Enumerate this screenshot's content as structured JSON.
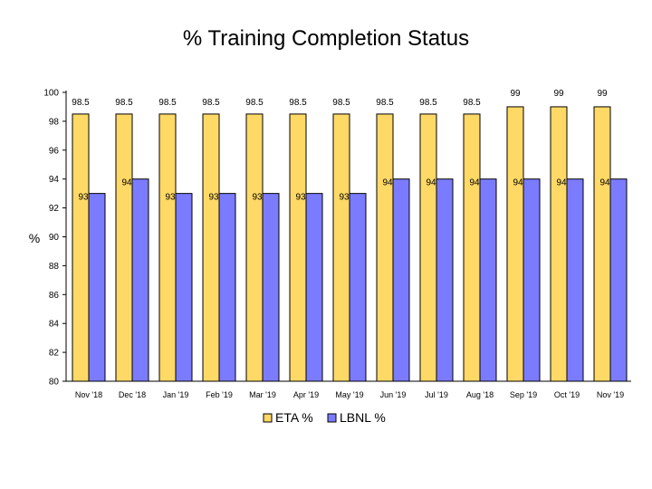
{
  "chart_data": {
    "type": "bar",
    "title": "% Training Completion Status",
    "ylabel": "%",
    "xlabel": "",
    "ylim": [
      80,
      100
    ],
    "yticks": [
      80,
      82,
      84,
      86,
      88,
      90,
      92,
      94,
      96,
      98,
      100
    ],
    "grid": false,
    "legend": "bottom",
    "categories": [
      "Nov '18",
      "Dec '18",
      "Jan '19",
      "Feb '19",
      "Mar '19",
      "Apr '19",
      "May '19",
      "Jun '19",
      "Jul '19",
      "Aug '18",
      "Sep '19",
      "Oct '19",
      "Nov '19"
    ],
    "series": [
      {
        "name": "ETA %",
        "color": "#FFD966",
        "values": [
          98.5,
          98.5,
          98.5,
          98.5,
          98.5,
          98.5,
          98.5,
          98.5,
          98.5,
          98.5,
          99,
          99,
          99
        ]
      },
      {
        "name": "LBNL %",
        "color": "#7B7BFF",
        "values": [
          93,
          94,
          93,
          93,
          93,
          93,
          93,
          94,
          94,
          94,
          94,
          94,
          94
        ]
      }
    ]
  }
}
